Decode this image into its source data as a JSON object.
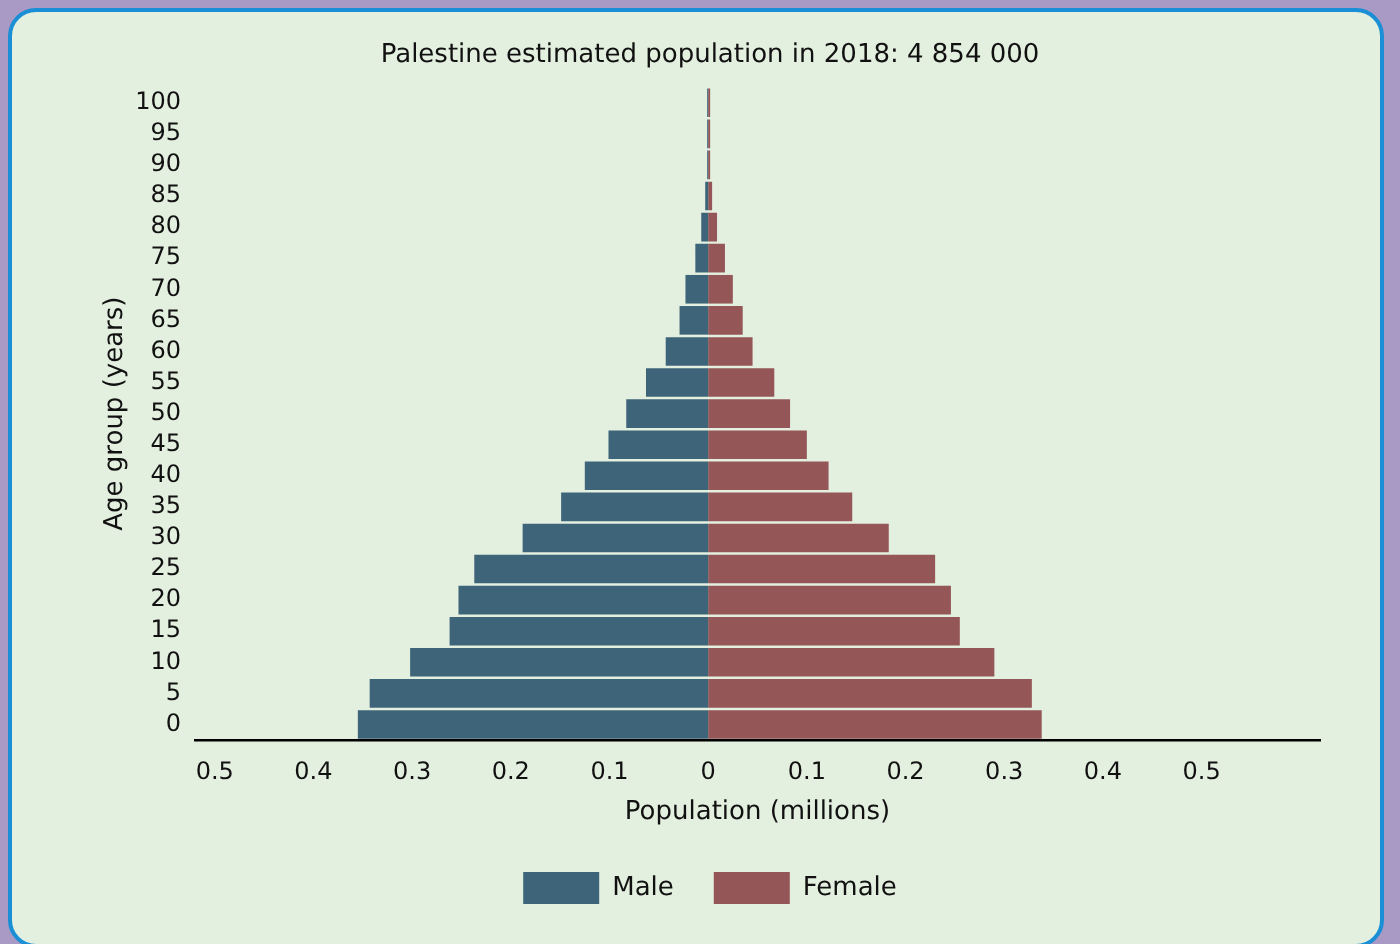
{
  "chart_data": {
    "type": "bar",
    "orientation": "horizontal",
    "stacked": true,
    "title": "Palestine estimated population in 2018: 4 854 000",
    "xlabel": "Population (millions)",
    "ylabel": "Age group (years)",
    "categories": [
      "100",
      "95",
      "90",
      "85",
      "80",
      "75",
      "70",
      "65",
      "60",
      "55",
      "50",
      "45",
      "40",
      "35",
      "30",
      "25",
      "20",
      "15",
      "10",
      "5",
      "0"
    ],
    "series": [
      {
        "name": "Male",
        "color": "#3e6479",
        "values": [
          -0.001,
          -0.001,
          -0.001,
          -0.003,
          -0.007,
          -0.013,
          -0.023,
          -0.029,
          -0.043,
          -0.063,
          -0.083,
          -0.101,
          -0.125,
          -0.149,
          -0.188,
          -0.237,
          -0.253,
          -0.262,
          -0.302,
          -0.343,
          -0.355
        ]
      },
      {
        "name": "Female",
        "color": "#945656",
        "values": [
          0.002,
          0.002,
          0.002,
          0.004,
          0.009,
          0.017,
          0.025,
          0.035,
          0.045,
          0.067,
          0.083,
          0.1,
          0.122,
          0.146,
          0.183,
          0.23,
          0.246,
          0.255,
          0.29,
          0.328,
          0.338
        ]
      }
    ],
    "xlim": [
      -0.52,
      0.62
    ],
    "xticks": [
      {
        "value": -0.5,
        "label": "0.5"
      },
      {
        "value": -0.4,
        "label": "0.4"
      },
      {
        "value": -0.3,
        "label": "0.3"
      },
      {
        "value": -0.2,
        "label": "0.2"
      },
      {
        "value": -0.1,
        "label": "0.1"
      },
      0,
      0.1,
      0.2,
      0.3,
      0.4,
      0.5
    ],
    "grid": false,
    "legend": "bottom"
  }
}
